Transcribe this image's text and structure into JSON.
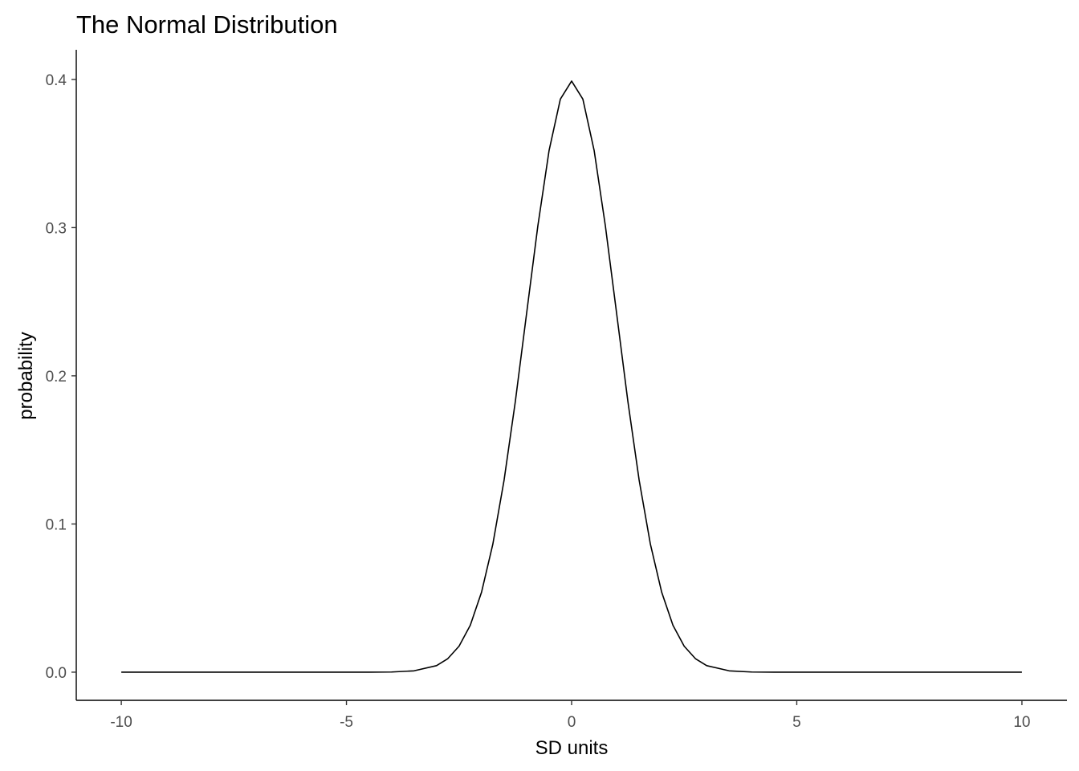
{
  "chart_data": {
    "type": "line",
    "title": "The Normal Distribution",
    "xlabel": "SD units",
    "ylabel": "probability",
    "xlim": [
      -11,
      11
    ],
    "ylim": [
      -0.019,
      0.42
    ],
    "x_ticks": [
      -10,
      -5,
      0,
      5,
      10
    ],
    "x_tick_labels": [
      "-10",
      "-5",
      "0",
      "5",
      "10"
    ],
    "y_ticks": [
      0.0,
      0.1,
      0.2,
      0.3,
      0.4
    ],
    "y_tick_labels": [
      "0.0",
      "0.1",
      "0.2",
      "0.3",
      "0.4"
    ],
    "grid": false,
    "line_color": "#000000",
    "axis_color": "#000000",
    "series": [
      {
        "x": [
          -10,
          -9,
          -8,
          -7,
          -6,
          -5,
          -4.5,
          -4,
          -3.5,
          -3,
          -2.75,
          -2.5,
          -2.25,
          -2,
          -1.75,
          -1.5,
          -1.25,
          -1,
          -0.75,
          -0.5,
          -0.25,
          0,
          0.25,
          0.5,
          0.75,
          1,
          1.25,
          1.5,
          1.75,
          2,
          2.25,
          2.5,
          2.75,
          3,
          3.5,
          4,
          4.5,
          5,
          6,
          7,
          8,
          9,
          10
        ],
        "y": [
          0.0,
          0.0,
          0.0,
          0.0,
          0.0,
          0.0,
          0.0,
          0.0001,
          0.0009,
          0.0044,
          0.0091,
          0.0175,
          0.0317,
          0.054,
          0.0863,
          0.1295,
          0.1826,
          0.242,
          0.3011,
          0.3521,
          0.3867,
          0.3989,
          0.3867,
          0.3521,
          0.3011,
          0.242,
          0.1826,
          0.1295,
          0.0863,
          0.054,
          0.0317,
          0.0175,
          0.0091,
          0.0044,
          0.0009,
          0.0001,
          0.0,
          0.0,
          0.0,
          0.0,
          0.0,
          0.0,
          0.0
        ]
      }
    ]
  }
}
